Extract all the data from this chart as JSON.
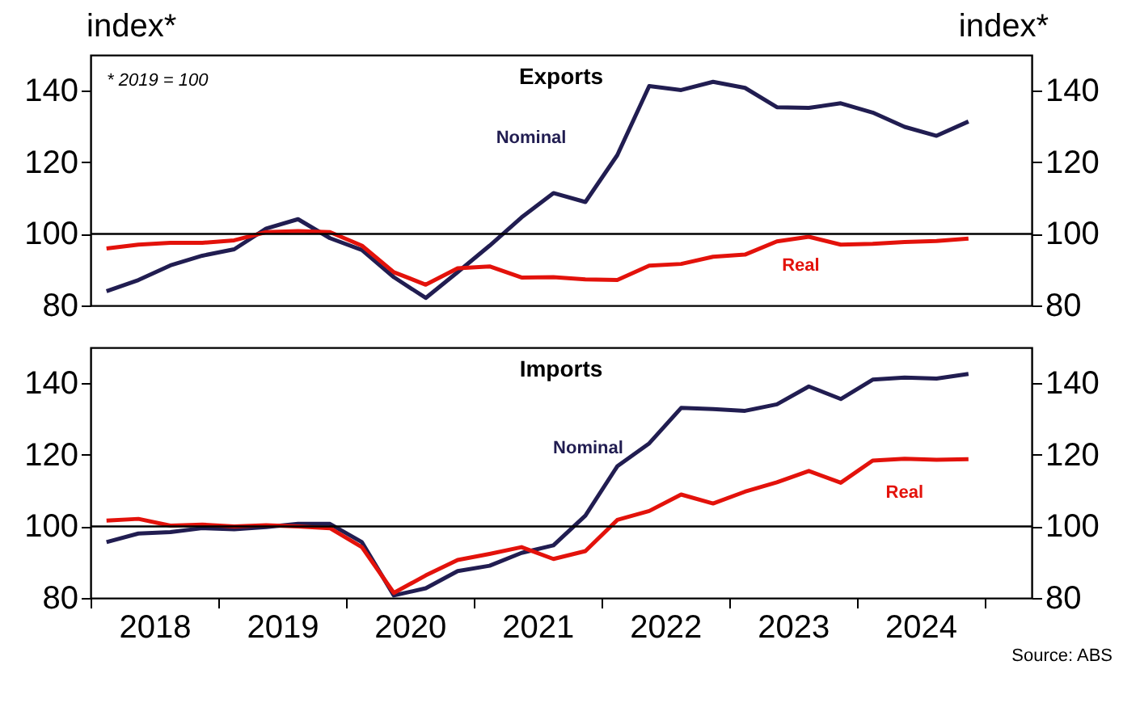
{
  "chart_data": [
    {
      "type": "line",
      "title": "Exports",
      "ylabel": "index*",
      "y2label": "index*",
      "tick_labels": "y",
      "xlim": [
        2018,
        2025.37
      ],
      "ylim": [
        80,
        150
      ],
      "yticks": [
        80,
        100,
        120,
        140
      ],
      "y2lim": [
        80,
        150
      ],
      "y2ticks": [
        80,
        100,
        120,
        140
      ],
      "line_style": "solid",
      "annotations": [
        "* 2019 = 100"
      ],
      "ref_lines": [
        {
          "axis": "y",
          "value": 100,
          "color": "#000000"
        }
      ],
      "x": [
        2018.125,
        2018.375,
        2018.625,
        2018.875,
        2019.125,
        2019.375,
        2019.625,
        2019.875,
        2020.125,
        2020.375,
        2020.625,
        2020.875,
        2021.125,
        2021.375,
        2021.625,
        2021.875,
        2022.125,
        2022.375,
        2022.625,
        2022.875,
        2023.125,
        2023.375,
        2023.625,
        2023.875,
        2024.125,
        2024.375,
        2024.625,
        2024.875
      ],
      "series": [
        {
          "name": "Nominal",
          "color": "#211d51",
          "values": [
            84,
            87.1,
            91.2,
            93.9,
            95.7,
            101.5,
            104.1,
            98.8,
            95.5,
            87.9,
            82.1,
            89.3,
            96.7,
            104.6,
            111.4,
            108.9,
            122,
            141.3,
            140.2,
            142.5,
            140.8,
            135.4,
            135.2,
            136.5,
            133.9,
            129.9,
            127.4,
            131.4
          ]
        },
        {
          "name": "Real",
          "color": "#e3120b",
          "values": [
            95.9,
            97,
            97.5,
            97.5,
            98.2,
            100.5,
            100.8,
            100.5,
            96.7,
            89.3,
            85.8,
            90.4,
            90.9,
            87.8,
            87.9,
            87.3,
            87.1,
            91.1,
            91.6,
            93.6,
            94.2,
            97.9,
            99.2,
            97,
            97.2,
            97.7,
            98,
            98.7
          ]
        }
      ]
    },
    {
      "type": "line",
      "title": "Imports",
      "xlim": [
        2018,
        2025.37
      ],
      "ylim": [
        80,
        150
      ],
      "yticks": [
        80,
        100,
        120,
        140
      ],
      "y2lim": [
        80,
        150
      ],
      "y2ticks": [
        80,
        100,
        120,
        140
      ],
      "line_style": "solid",
      "annotations": [
        "Source: ABS"
      ],
      "xticks": [
        {
          "value": 2018,
          "label": null
        },
        {
          "value": 2018.5,
          "label": "2018"
        },
        {
          "value": 2019,
          "label": null
        },
        {
          "value": 2019.5,
          "label": "2019"
        },
        {
          "value": 2020,
          "label": null
        },
        {
          "value": 2020.5,
          "label": "2020"
        },
        {
          "value": 2021,
          "label": null
        },
        {
          "value": 2021.5,
          "label": "2021"
        },
        {
          "value": 2022,
          "label": null
        },
        {
          "value": 2022.5,
          "label": "2022"
        },
        {
          "value": 2023,
          "label": null
        },
        {
          "value": 2023.5,
          "label": "2023"
        },
        {
          "value": 2024,
          "label": null
        },
        {
          "value": 2024.5,
          "label": "2024"
        },
        {
          "value": 2025,
          "label": null
        }
      ],
      "ref_lines": [
        {
          "axis": "y",
          "value": 100,
          "color": "#000000"
        }
      ],
      "x": [
        2018.125,
        2018.375,
        2018.625,
        2018.875,
        2019.125,
        2019.375,
        2019.625,
        2019.875,
        2020.125,
        2020.375,
        2020.625,
        2020.875,
        2021.125,
        2021.375,
        2021.625,
        2021.875,
        2022.125,
        2022.375,
        2022.625,
        2022.875,
        2023.125,
        2023.375,
        2023.625,
        2023.875,
        2024.125,
        2024.375,
        2024.625,
        2024.875
      ],
      "series": [
        {
          "name": "Nominal",
          "color": "#211d51",
          "values": [
            95.6,
            98,
            98.4,
            99.5,
            99.2,
            99.8,
            100.7,
            100.7,
            95.6,
            80.7,
            82.7,
            87.5,
            89,
            92.6,
            94.7,
            103,
            116.8,
            123.2,
            133.1,
            132.8,
            132.3,
            134.1,
            139.1,
            135.6,
            141,
            141.6,
            141.3,
            142.6
          ]
        },
        {
          "name": "Real",
          "color": "#e3120b",
          "values": [
            101.6,
            102.1,
            100.2,
            100.5,
            100,
            100.3,
            100,
            99.5,
            94.2,
            81.4,
            86.3,
            90.6,
            92.3,
            94.2,
            90.9,
            93.1,
            101.8,
            104.3,
            108.9,
            106.4,
            109.7,
            112.3,
            115.5,
            112.2,
            118.4,
            118.9,
            118.6,
            118.8
          ]
        }
      ]
    }
  ]
}
